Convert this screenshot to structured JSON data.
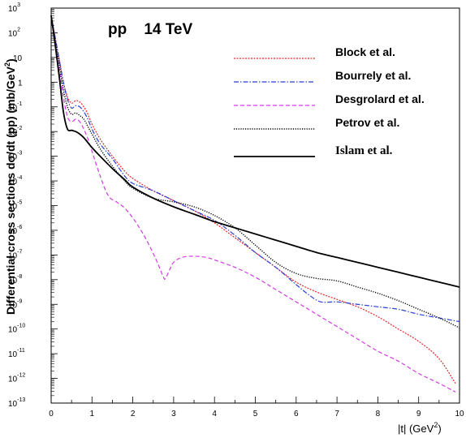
{
  "chart_data": {
    "type": "line",
    "title": "pp    14 TeV",
    "ylabel_main": "Differential cross sections d",
    "ylabel_sigma": "σ",
    "ylabel_rest": "/dt (pp) (mb/GeV",
    "ylabel_exp": "2",
    "ylabel_close": ")",
    "xlabel_main": "|t| (GeV",
    "xlabel_exp": "2",
    "xlabel_close": ")",
    "xlim": [
      0,
      10
    ],
    "ylog": true,
    "ylim_exp": [
      -13,
      3
    ],
    "x_ticks": [
      "0",
      "1",
      "2",
      "3",
      "4",
      "5",
      "6",
      "7",
      "8",
      "9",
      "10"
    ],
    "y_ticks": [
      {
        "base": "10",
        "exp": "3"
      },
      {
        "base": "10",
        "exp": "2"
      },
      {
        "base": "10",
        "exp": ""
      },
      {
        "base": "1",
        "exp": ""
      },
      {
        "base": "10",
        "exp": "-1"
      },
      {
        "base": "10",
        "exp": "-2"
      },
      {
        "base": "10",
        "exp": "-3"
      },
      {
        "base": "10",
        "exp": "-4"
      },
      {
        "base": "10",
        "exp": "-5"
      },
      {
        "base": "10",
        "exp": "-6"
      },
      {
        "base": "10",
        "exp": "-7"
      },
      {
        "base": "10",
        "exp": "-8"
      },
      {
        "base": "10",
        "exp": "-9"
      },
      {
        "base": "10",
        "exp": "-10"
      },
      {
        "base": "10",
        "exp": "-11"
      },
      {
        "base": "10",
        "exp": "-12"
      },
      {
        "base": "10",
        "exp": "-13"
      }
    ],
    "legend_position": "top-right",
    "series": [
      {
        "name": "Block et al.",
        "color": "#e8242b",
        "dash": "2,1.5",
        "width": 1.2,
        "x": [
          0.0,
          0.1,
          0.2,
          0.3,
          0.4,
          0.5,
          0.6,
          0.7,
          0.8,
          0.9,
          1.0,
          1.2,
          1.5,
          1.8,
          2.0,
          2.5,
          3.0,
          3.5,
          4.0,
          4.5,
          5.0,
          5.5,
          6.0,
          6.5,
          7.0,
          7.5,
          8.0,
          8.5,
          9.0,
          9.5,
          9.9
        ],
        "logy": [
          2.7,
          1.8,
          0.9,
          0.0,
          -0.6,
          -0.85,
          -0.75,
          -0.8,
          -1.0,
          -1.3,
          -1.7,
          -2.3,
          -3.0,
          -3.6,
          -3.9,
          -4.4,
          -4.8,
          -5.2,
          -5.7,
          -6.3,
          -6.9,
          -7.5,
          -8.1,
          -8.5,
          -8.8,
          -9.1,
          -9.5,
          -10.0,
          -10.5,
          -11.2,
          -12.2
        ]
      },
      {
        "name": "Bourrely et al.",
        "color": "#2b3fd6",
        "dash": "6,2,1.5,2",
        "width": 1.2,
        "x": [
          0.0,
          0.1,
          0.2,
          0.3,
          0.4,
          0.5,
          0.6,
          0.7,
          0.8,
          0.9,
          1.0,
          1.2,
          1.5,
          1.8,
          2.0,
          2.5,
          3.0,
          3.5,
          4.0,
          4.5,
          5.0,
          5.5,
          6.0,
          6.3,
          6.6,
          7.0,
          7.5,
          8.0,
          8.5,
          9.0,
          9.5,
          10.0
        ],
        "logy": [
          2.7,
          1.8,
          0.9,
          0.0,
          -0.7,
          -1.05,
          -0.95,
          -1.0,
          -1.2,
          -1.5,
          -1.9,
          -2.5,
          -3.1,
          -3.8,
          -4.1,
          -4.4,
          -4.8,
          -5.2,
          -5.6,
          -6.2,
          -6.9,
          -7.5,
          -8.2,
          -8.6,
          -8.9,
          -8.9,
          -9.0,
          -9.1,
          -9.2,
          -9.4,
          -9.55,
          -9.7
        ]
      },
      {
        "name": "Desgrolard et al.",
        "color": "#d33be3",
        "dash": "5,3",
        "width": 1.2,
        "x": [
          0.0,
          0.1,
          0.2,
          0.3,
          0.4,
          0.5,
          0.6,
          0.7,
          0.8,
          0.9,
          1.0,
          1.2,
          1.4,
          1.6,
          1.8,
          2.0,
          2.2,
          2.4,
          2.6,
          2.75,
          2.8,
          2.9,
          3.0,
          3.2,
          3.5,
          3.8,
          4.0,
          4.5,
          5.0,
          5.5,
          6.0,
          6.5,
          7.0,
          7.5,
          8.0,
          8.5,
          9.0,
          9.5,
          9.9
        ],
        "logy": [
          2.7,
          1.6,
          0.5,
          -0.6,
          -1.4,
          -1.6,
          -1.5,
          -1.6,
          -1.9,
          -2.3,
          -2.8,
          -3.8,
          -4.6,
          -4.85,
          -5.1,
          -5.5,
          -6.0,
          -6.6,
          -7.3,
          -7.9,
          -7.95,
          -7.6,
          -7.3,
          -7.1,
          -7.05,
          -7.1,
          -7.2,
          -7.5,
          -7.9,
          -8.4,
          -8.9,
          -9.4,
          -9.9,
          -10.4,
          -10.9,
          -11.3,
          -11.8,
          -12.2,
          -12.55
        ]
      },
      {
        "name": "Petrov et al.",
        "color": "#000000",
        "dash": "1.2,1.6",
        "width": 1.4,
        "x": [
          0.0,
          0.1,
          0.2,
          0.3,
          0.4,
          0.5,
          0.6,
          0.7,
          0.8,
          0.9,
          1.0,
          1.2,
          1.5,
          1.8,
          2.0,
          2.5,
          3.0,
          3.5,
          4.0,
          4.5,
          5.0,
          5.5,
          6.0,
          6.5,
          7.0,
          7.5,
          8.0,
          8.5,
          9.0,
          9.5,
          10.0
        ],
        "logy": [
          2.7,
          1.7,
          0.7,
          -0.3,
          -1.0,
          -1.3,
          -1.25,
          -1.35,
          -1.5,
          -1.8,
          -2.1,
          -2.7,
          -3.4,
          -4.0,
          -4.3,
          -4.7,
          -4.85,
          -5.05,
          -5.4,
          -5.9,
          -6.6,
          -7.3,
          -7.75,
          -7.95,
          -8.05,
          -8.3,
          -8.55,
          -8.85,
          -9.2,
          -9.55,
          -9.95
        ]
      },
      {
        "name": "Islam et al.",
        "color": "#000000",
        "dash": "",
        "width": 1.8,
        "serif": true,
        "x": [
          0.0,
          0.1,
          0.2,
          0.3,
          0.4,
          0.5,
          0.6,
          0.7,
          0.8,
          0.9,
          1.0,
          1.2,
          1.5,
          1.8,
          2.0,
          2.5,
          3.0,
          3.5,
          4.0,
          4.5,
          5.0,
          5.5,
          6.0,
          6.5,
          7.0,
          7.5,
          8.0,
          8.5,
          9.0,
          9.5,
          10.0
        ],
        "logy": [
          2.7,
          1.5,
          0.2,
          -1.2,
          -1.9,
          -1.95,
          -2.0,
          -2.1,
          -2.25,
          -2.45,
          -2.65,
          -3.0,
          -3.5,
          -3.95,
          -4.25,
          -4.7,
          -5.05,
          -5.35,
          -5.65,
          -5.9,
          -6.15,
          -6.4,
          -6.65,
          -6.9,
          -7.1,
          -7.3,
          -7.5,
          -7.7,
          -7.9,
          -8.1,
          -8.3
        ]
      }
    ]
  }
}
